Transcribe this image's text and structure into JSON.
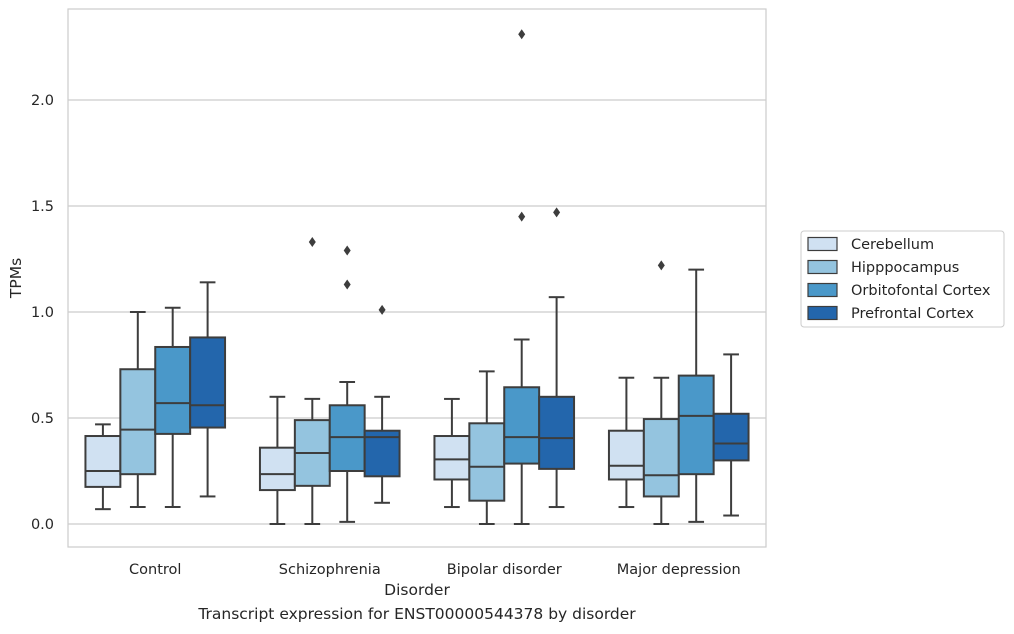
{
  "chart_data": {
    "type": "boxplot",
    "xlabel": "Disorder",
    "ylabel": "TPMs",
    "ylim": [
      -0.11,
      2.42
    ],
    "yticks": [
      0.0,
      0.5,
      1.0,
      1.5,
      2.0
    ],
    "ytick_labels": [
      "0.0",
      "0.5",
      "1.0",
      "1.5",
      "2.0"
    ],
    "grid": "horizontal",
    "legend_position": "right, outside plot",
    "categories": [
      "Control",
      "Schizophrenia",
      "Bipolar disorder",
      "Major depression"
    ],
    "series": [
      {
        "name": "Cerebellum",
        "color": "#d0e1f2",
        "boxes": [
          {
            "whislo": 0.07,
            "q1": 0.175,
            "med": 0.25,
            "q3": 0.415,
            "whishi": 0.47,
            "fliers": []
          },
          {
            "whislo": 0.0,
            "q1": 0.16,
            "med": 0.235,
            "q3": 0.36,
            "whishi": 0.6,
            "fliers": []
          },
          {
            "whislo": 0.08,
            "q1": 0.21,
            "med": 0.305,
            "q3": 0.415,
            "whishi": 0.59,
            "fliers": []
          },
          {
            "whislo": 0.08,
            "q1": 0.21,
            "med": 0.275,
            "q3": 0.44,
            "whishi": 0.69,
            "fliers": []
          }
        ]
      },
      {
        "name": "Hipppocampus",
        "color": "#94c4df",
        "boxes": [
          {
            "whislo": 0.08,
            "q1": 0.235,
            "med": 0.445,
            "q3": 0.73,
            "whishi": 1.0,
            "fliers": []
          },
          {
            "whislo": 0.0,
            "q1": 0.18,
            "med": 0.335,
            "q3": 0.49,
            "whishi": 0.59,
            "fliers": [
              1.33
            ]
          },
          {
            "whislo": 0.0,
            "q1": 0.11,
            "med": 0.27,
            "q3": 0.475,
            "whishi": 0.72,
            "fliers": []
          },
          {
            "whislo": 0.0,
            "q1": 0.13,
            "med": 0.23,
            "q3": 0.495,
            "whishi": 0.69,
            "fliers": [
              1.22
            ]
          }
        ]
      },
      {
        "name": "Orbitofontal Cortex",
        "color": "#4a98c9",
        "boxes": [
          {
            "whislo": 0.08,
            "q1": 0.425,
            "med": 0.57,
            "q3": 0.835,
            "whishi": 1.02,
            "fliers": []
          },
          {
            "whislo": 0.01,
            "q1": 0.25,
            "med": 0.41,
            "q3": 0.56,
            "whishi": 0.67,
            "fliers": [
              1.13,
              1.29
            ]
          },
          {
            "whislo": 0.0,
            "q1": 0.285,
            "med": 0.41,
            "q3": 0.645,
            "whishi": 0.87,
            "fliers": [
              1.45,
              2.31
            ]
          },
          {
            "whislo": 0.01,
            "q1": 0.235,
            "med": 0.51,
            "q3": 0.7,
            "whishi": 1.2,
            "fliers": []
          }
        ]
      },
      {
        "name": "Prefrontal Cortex",
        "color": "#2366ac",
        "boxes": [
          {
            "whislo": 0.13,
            "q1": 0.455,
            "med": 0.56,
            "q3": 0.88,
            "whishi": 1.14,
            "fliers": []
          },
          {
            "whislo": 0.1,
            "q1": 0.225,
            "med": 0.41,
            "q3": 0.44,
            "whishi": 0.6,
            "fliers": [
              1.01
            ]
          },
          {
            "whislo": 0.08,
            "q1": 0.26,
            "med": 0.405,
            "q3": 0.6,
            "whishi": 1.07,
            "fliers": [
              1.47
            ]
          },
          {
            "whislo": 0.04,
            "q1": 0.3,
            "med": 0.38,
            "q3": 0.52,
            "whishi": 0.8,
            "fliers": []
          }
        ]
      }
    ]
  },
  "caption": "Transcript expression for ENST00000544378 by disorder",
  "colors": {
    "grid": "#cccccc",
    "frame": "#cccccc",
    "box_edge": "#3d3d3d"
  }
}
